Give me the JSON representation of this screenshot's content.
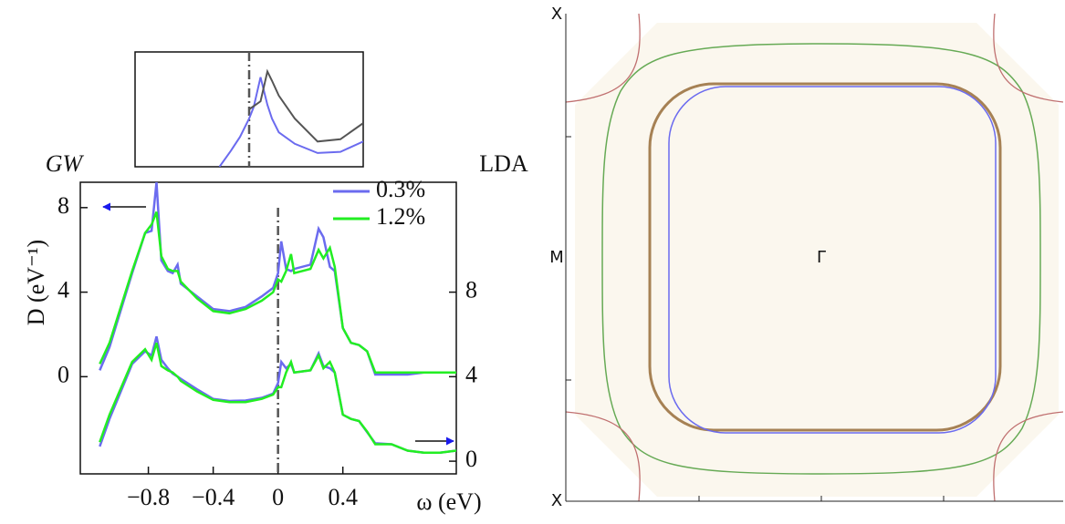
{
  "chart_data": [
    {
      "type": "line",
      "x_label": "ω (eV)",
      "y_label": "D (eV⁻¹)",
      "y_label_left": "GW",
      "y_label_right": "LDA",
      "xlim": [
        -1.22,
        1.1
      ],
      "xticks": [
        {
          "value": -0.8,
          "label": "−0.8"
        },
        {
          "value": -0.4,
          "label": "−0.4"
        },
        0,
        0.4
      ],
      "ylim": [
        -4.6,
        9.2
      ],
      "yticks": [
        0,
        4,
        8
      ],
      "y2lim": [
        -0.6,
        13.2
      ],
      "y2ticks": [
        0,
        4,
        8
      ],
      "dashdot_x": 0,
      "x": [
        -1.1,
        -1.04,
        -0.9,
        -0.82,
        -0.78,
        -0.75,
        -0.72,
        -0.68,
        -0.65,
        -0.62,
        -0.6,
        -0.5,
        -0.4,
        -0.3,
        -0.2,
        -0.1,
        -0.03,
        0,
        0.02,
        0.05,
        0.08,
        0.1,
        0.2,
        0.25,
        0.28,
        0.32,
        0.35,
        0.4,
        0.45,
        0.5,
        0.55,
        0.6,
        0.7,
        0.8,
        0.9,
        1.0,
        1.1
      ],
      "series": [
        {
          "name": "0.3%",
          "color": "#6b6bef",
          "axis": "y",
          "values": [
            0.3,
            1.4,
            4.9,
            6.8,
            6.9,
            9.2,
            5.5,
            5.0,
            4.9,
            5.3,
            4.4,
            3.8,
            3.2,
            3.1,
            3.3,
            3.8,
            4.2,
            4.9,
            6.4,
            5.1,
            5.0,
            5.1,
            5.3,
            7.0,
            6.6,
            5.2,
            5.0,
            2.3,
            1.6,
            1.5,
            1.2,
            0.1,
            0.1,
            0.1,
            0.2,
            0.2,
            0.2
          ]
        },
        {
          "name": "1.2%",
          "color": "#22ee22",
          "axis": "y",
          "values": [
            0.6,
            1.6,
            5.0,
            6.8,
            7.2,
            7.8,
            5.7,
            5.1,
            5.0,
            5.0,
            4.5,
            3.7,
            3.1,
            3.0,
            3.2,
            3.6,
            4.0,
            4.6,
            4.5,
            5.0,
            5.8,
            4.9,
            5.1,
            6.0,
            5.6,
            6.1,
            5.2,
            2.3,
            1.6,
            1.5,
            1.2,
            0.2,
            0.2,
            0.2,
            0.2,
            0.2,
            0.2
          ]
        },
        {
          "color": "#6b6bef",
          "axis": "y2",
          "values": [
            0.7,
            2.0,
            4.6,
            5.2,
            5.0,
            5.9,
            4.8,
            4.4,
            4.15,
            4.0,
            3.9,
            3.4,
            2.95,
            2.85,
            2.87,
            3.0,
            3.2,
            3.7,
            4.7,
            4.4,
            4.6,
            4.2,
            4.3,
            5.1,
            4.5,
            4.4,
            4.2,
            2.2,
            2.0,
            1.9,
            1.37,
            0.85,
            0.8,
            0.5,
            0.4,
            0.4,
            0.5
          ]
        },
        {
          "color": "#22ee22",
          "axis": "y2",
          "values": [
            0.9,
            2.2,
            4.7,
            5.3,
            4.8,
            5.6,
            4.5,
            4.3,
            4.2,
            4.0,
            3.8,
            3.3,
            2.9,
            2.8,
            2.8,
            2.95,
            3.15,
            3.5,
            3.5,
            4.2,
            4.7,
            4.2,
            4.3,
            5.0,
            4.4,
            4.7,
            4.2,
            2.2,
            2.0,
            1.9,
            1.4,
            0.8,
            0.8,
            0.5,
            0.4,
            0.4,
            0.5
          ]
        }
      ]
    },
    {
      "type": "line",
      "xlim": [
        0,
        1
      ],
      "ylim": [
        0,
        1
      ],
      "dashdot_x": 0.5,
      "series": [
        {
          "color": "#6b6bef",
          "x": [
            0.37,
            0.42,
            0.46,
            0.5,
            0.52,
            0.55,
            0.58,
            0.6,
            0.63,
            0.7,
            0.8,
            0.9,
            1.0
          ],
          "values": [
            0,
            0.14,
            0.26,
            0.42,
            0.52,
            0.78,
            0.54,
            0.42,
            0.3,
            0.2,
            0.12,
            0.13,
            0.22
          ]
        },
        {
          "color": "#555555",
          "x": [
            0.5,
            0.55,
            0.58,
            0.6,
            0.63,
            0.7,
            0.8,
            0.9,
            1.0
          ],
          "values": [
            0.5,
            0.57,
            0.83,
            0.75,
            0.62,
            0.42,
            0.22,
            0.24,
            0.38
          ]
        }
      ]
    },
    {
      "type": "image",
      "point_labels": [
        "X",
        "M",
        "Γ",
        "X"
      ]
    }
  ]
}
